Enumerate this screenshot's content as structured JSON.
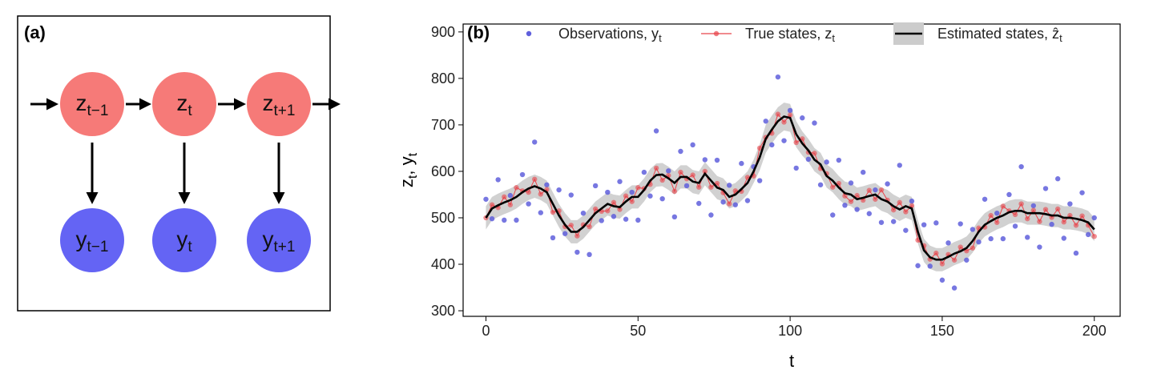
{
  "panel_a": {
    "label": "(a)",
    "nodes": [
      {
        "label": "z",
        "sub": "t−1"
      },
      {
        "label": "z",
        "sub": "t"
      },
      {
        "label": "z",
        "sub": "t+1"
      },
      {
        "label": "y",
        "sub": "t−1"
      },
      {
        "label": "y",
        "sub": "t"
      },
      {
        "label": "y",
        "sub": "t+1"
      }
    ]
  },
  "chart_data": {
    "type": "line",
    "panel_label": "(b)",
    "xlabel": "t",
    "ylabel": [
      "z",
      "t",
      ", y",
      "t"
    ],
    "xlim": [
      -7.5,
      208.5
    ],
    "ylim": [
      288,
      917
    ],
    "xticks": [
      0,
      50,
      100,
      150,
      200
    ],
    "yticks": [
      300,
      400,
      500,
      600,
      700,
      800,
      900
    ],
    "legend": "top",
    "grid": false,
    "x": [
      0,
      2,
      4,
      6,
      8,
      10,
      12,
      14,
      16,
      18,
      20,
      22,
      24,
      26,
      28,
      30,
      32,
      34,
      36,
      38,
      40,
      42,
      44,
      46,
      48,
      50,
      52,
      54,
      56,
      58,
      60,
      62,
      64,
      66,
      68,
      70,
      72,
      74,
      76,
      78,
      80,
      82,
      84,
      86,
      88,
      90,
      92,
      94,
      96,
      98,
      100,
      102,
      104,
      106,
      108,
      110,
      112,
      114,
      116,
      118,
      120,
      122,
      124,
      126,
      128,
      130,
      132,
      134,
      136,
      138,
      140,
      142,
      144,
      146,
      148,
      150,
      152,
      154,
      156,
      158,
      160,
      162,
      164,
      166,
      168,
      170,
      172,
      174,
      176,
      178,
      180,
      182,
      184,
      186,
      188,
      190,
      192,
      194,
      196,
      198,
      200
    ],
    "series": [
      {
        "name": "Observations, y",
        "name_sub": "t",
        "style": "points",
        "color": "#5f5fdc",
        "values": [
          540,
          498,
          582,
          495,
          548,
          495,
          593,
          530,
          663,
          511,
          571,
          457,
          560,
          466,
          549,
          426,
          510,
          421,
          569,
          494,
          555,
          503,
          578,
          497,
          555,
          495,
          598,
          547,
          687,
          541,
          601,
          502,
          643,
          569,
          657,
          531,
          625,
          506,
          624,
          534,
          570,
          528,
          617,
          537,
          610,
          580,
          708,
          657,
          803,
          666,
          731,
          607,
          715,
          626,
          704,
          571,
          620,
          506,
          624,
          527,
          575,
          518,
          598,
          509,
          560,
          490,
          573,
          492,
          613,
          473,
          536,
          397,
          485,
          396,
          489,
          366,
          446,
          349,
          487,
          409,
          475,
          448,
          540,
          455,
          510,
          455,
          550,
          482,
          610,
          458,
          526,
          437,
          563,
          486,
          584,
          456,
          530,
          424,
          554,
          464,
          500
        ]
      },
      {
        "name": "True states, z",
        "name_sub": "t",
        "style": "line-points",
        "color": "#e8434a",
        "values": [
          500,
          528,
          522,
          545,
          528,
          565,
          558,
          555,
          583,
          551,
          561,
          512,
          515,
          481,
          484,
          461,
          485,
          481,
          519,
          514,
          515,
          533,
          518,
          547,
          535,
          565,
          563,
          572,
          607,
          581,
          591,
          557,
          598,
          584,
          592,
          566,
          600,
          566,
          574,
          554,
          530,
          558,
          557,
          587,
          590,
          650,
          673,
          682,
          723,
          706,
          721,
          662,
          670,
          641,
          639,
          606,
          595,
          566,
          574,
          547,
          535,
          548,
          538,
          559,
          540,
          560,
          538,
          517,
          533,
          513,
          526,
          452,
          440,
          411,
          424,
          401,
          421,
          409,
          437,
          429,
          435,
          478,
          480,
          505,
          490,
          525,
          515,
          507,
          530,
          498,
          516,
          492,
          518,
          501,
          519,
          491,
          505,
          484,
          504,
          484,
          460
        ]
      },
      {
        "name": "Estimated states, ẑ",
        "name_sub": "t",
        "style": "line-band",
        "color": "#000000",
        "band_color": "#cccccc",
        "values": [
          500,
          520,
          527,
          533,
          538,
          545,
          555,
          563,
          568,
          563,
          555,
          530,
          505,
          485,
          470,
          470,
          480,
          495,
          510,
          520,
          530,
          525,
          523,
          535,
          545,
          545,
          560,
          580,
          592,
          593,
          585,
          575,
          588,
          588,
          578,
          575,
          595,
          580,
          565,
          560,
          545,
          550,
          562,
          575,
          600,
          630,
          670,
          690,
          708,
          718,
          715,
          680,
          660,
          645,
          625,
          615,
          590,
          580,
          565,
          553,
          550,
          540,
          543,
          547,
          550,
          540,
          535,
          525,
          518,
          525,
          520,
          470,
          430,
          415,
          410,
          410,
          416,
          423,
          428,
          435,
          450,
          470,
          485,
          493,
          500,
          505,
          512,
          515,
          515,
          510,
          510,
          510,
          508,
          505,
          505,
          500,
          500,
          498,
          495,
          490,
          475
        ],
        "lower": [
          475,
          495,
          502,
          508,
          513,
          520,
          530,
          538,
          543,
          538,
          530,
          505,
          480,
          460,
          445,
          445,
          455,
          470,
          485,
          495,
          505,
          500,
          498,
          510,
          520,
          520,
          535,
          555,
          567,
          568,
          560,
          550,
          563,
          563,
          553,
          550,
          570,
          555,
          540,
          535,
          520,
          525,
          537,
          550,
          575,
          602,
          640,
          660,
          678,
          688,
          685,
          652,
          634,
          620,
          600,
          590,
          565,
          555,
          540,
          528,
          525,
          515,
          518,
          522,
          525,
          515,
          510,
          500,
          493,
          500,
          495,
          445,
          405,
          390,
          385,
          385,
          391,
          398,
          403,
          410,
          425,
          445,
          460,
          468,
          475,
          480,
          487,
          490,
          490,
          485,
          485,
          485,
          483,
          480,
          480,
          475,
          475,
          473,
          470,
          465,
          450
        ],
        "upper": [
          525,
          545,
          552,
          558,
          563,
          570,
          580,
          588,
          593,
          588,
          580,
          555,
          530,
          510,
          495,
          495,
          505,
          520,
          535,
          545,
          555,
          550,
          548,
          560,
          570,
          570,
          585,
          605,
          617,
          618,
          610,
          600,
          613,
          613,
          603,
          600,
          620,
          605,
          590,
          585,
          570,
          575,
          587,
          600,
          625,
          658,
          700,
          720,
          738,
          748,
          745,
          708,
          686,
          670,
          650,
          640,
          615,
          605,
          590,
          578,
          575,
          565,
          568,
          572,
          575,
          565,
          560,
          550,
          543,
          550,
          545,
          495,
          455,
          440,
          435,
          435,
          441,
          448,
          453,
          460,
          475,
          495,
          510,
          518,
          525,
          530,
          537,
          540,
          540,
          535,
          535,
          535,
          533,
          530,
          530,
          525,
          525,
          523,
          520,
          515,
          500
        ]
      }
    ]
  }
}
